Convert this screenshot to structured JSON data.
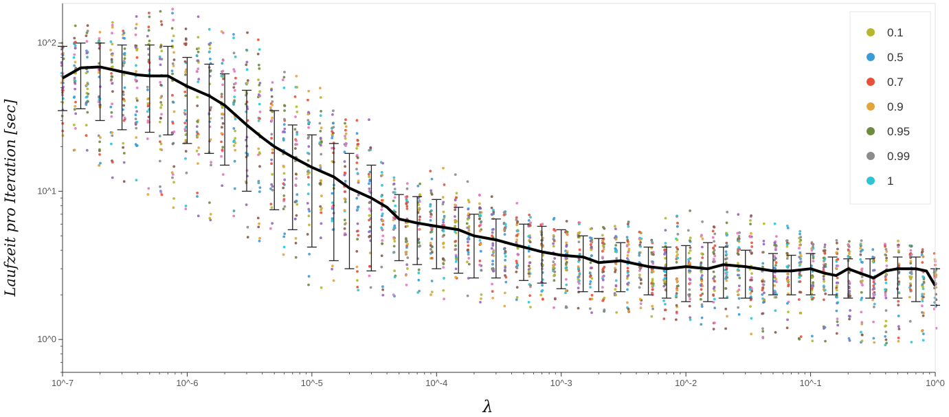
{
  "chart_data": {
    "type": "scatter",
    "title": "",
    "xlabel": "λ",
    "ylabel": "Laufzeit pro Iteration [sec]",
    "xscale": "log",
    "yscale": "log",
    "xlim": [
      1e-07,
      1
    ],
    "ylim": [
      0.6,
      185
    ],
    "grid": false,
    "legend_position": "top-right",
    "x_ticks": [
      {
        "value": 1e-07,
        "label": "10^-7"
      },
      {
        "value": 1e-06,
        "label": "10^-6"
      },
      {
        "value": 1e-05,
        "label": "10^-5"
      },
      {
        "value": 0.0001,
        "label": "10^-4"
      },
      {
        "value": 0.001,
        "label": "10^-3"
      },
      {
        "value": 0.01,
        "label": "10^-2"
      },
      {
        "value": 0.1,
        "label": "10^-1"
      },
      {
        "value": 1,
        "label": "10^0"
      }
    ],
    "y_ticks": [
      {
        "value": 1,
        "label": "10^0"
      },
      {
        "value": 10,
        "label": "10^1"
      },
      {
        "value": 100,
        "label": "10^2"
      }
    ],
    "legend": [
      {
        "label": "0.1",
        "color": "#b5b82e"
      },
      {
        "label": "0.5",
        "color": "#3b9bd6"
      },
      {
        "label": "0.7",
        "color": "#e8503a"
      },
      {
        "label": "0.9",
        "color": "#e3a53a"
      },
      {
        "label": "0.95",
        "color": "#6e8c3f"
      },
      {
        "label": "0.99",
        "color": "#8c8c8c"
      },
      {
        "label": "1",
        "color": "#2ec4d6"
      }
    ],
    "scatter_colors": [
      "#b5b82e",
      "#3b9bd6",
      "#e8503a",
      "#e3a53a",
      "#6e8c3f",
      "#8c8c8c",
      "#2ec4d6",
      "#8b5a4a",
      "#e377c2",
      "#9467bd"
    ],
    "mean_line": {
      "color": "#000000",
      "x": [
        1e-07,
        1.4e-07,
        2e-07,
        3e-07,
        4e-07,
        5e-07,
        7e-07,
        1e-06,
        1.5e-06,
        2e-06,
        3e-06,
        4e-06,
        5e-06,
        7e-06,
        1e-05,
        1.5e-05,
        2e-05,
        3e-05,
        4e-05,
        5e-05,
        7e-05,
        0.0001,
        0.00015,
        0.0002,
        0.0003,
        0.0004,
        0.0005,
        0.0007,
        0.001,
        0.0015,
        0.002,
        0.003,
        0.005,
        0.007,
        0.01,
        0.015,
        0.02,
        0.03,
        0.05,
        0.07,
        0.1,
        0.13,
        0.16,
        0.2,
        0.25,
        0.32,
        0.4,
        0.5,
        0.7,
        0.85,
        1
      ],
      "y": [
        58,
        68,
        69,
        64,
        61,
        60,
        60,
        51,
        44,
        38,
        28,
        23,
        20,
        17,
        14.5,
        12.5,
        10.5,
        9,
        7.8,
        6.5,
        6.1,
        5.8,
        5.5,
        5.0,
        4.7,
        4.4,
        4.2,
        3.9,
        3.7,
        3.6,
        3.3,
        3.4,
        3.1,
        3.0,
        3.1,
        3.0,
        3.2,
        3.1,
        2.9,
        2.9,
        3.0,
        2.8,
        2.7,
        3.0,
        2.8,
        2.6,
        2.9,
        3.0,
        3.0,
        2.9,
        2.3
      ]
    },
    "error_bars": {
      "x": [
        1e-07,
        1.4e-07,
        2e-07,
        3e-07,
        5e-07,
        7e-07,
        1e-06,
        1.5e-06,
        2e-06,
        3e-06,
        5e-06,
        7e-06,
        1e-05,
        1.5e-05,
        2e-05,
        3e-05,
        5e-05,
        7e-05,
        0.0001,
        0.00015,
        0.0002,
        0.0003,
        0.0005,
        0.0007,
        0.001,
        0.0015,
        0.002,
        0.003,
        0.005,
        0.007,
        0.01,
        0.015,
        0.02,
        0.03,
        0.05,
        0.07,
        0.1,
        0.15,
        0.2,
        0.3,
        0.5,
        0.7,
        1
      ],
      "upper": [
        95,
        100,
        100,
        97,
        97,
        95,
        80,
        72,
        62,
        48,
        35,
        28,
        24,
        21,
        18,
        15,
        9.5,
        9.2,
        8.8,
        7.8,
        7.0,
        6.5,
        6.0,
        5.8,
        5.5,
        5.0,
        4.8,
        4.5,
        4.2,
        4.2,
        4.3,
        4.5,
        4.2,
        4.0,
        3.8,
        3.7,
        3.8,
        3.6,
        3.5,
        3.5,
        3.6,
        3.6,
        3.0
      ],
      "lower": [
        35,
        36,
        30,
        26,
        25,
        24,
        21,
        18,
        15,
        10,
        7.5,
        5.5,
        4.2,
        3.4,
        3.0,
        2.9,
        3.4,
        3.2,
        3.0,
        2.8,
        2.6,
        2.6,
        2.5,
        2.4,
        2.2,
        2.1,
        2.1,
        2.1,
        2.0,
        1.9,
        1.8,
        1.8,
        1.9,
        1.9,
        2.0,
        2.0,
        2.0,
        2.0,
        1.9,
        1.9,
        1.9,
        1.8,
        1.7
      ]
    },
    "point_envelope": {
      "x": [
        1e-07,
        2e-07,
        3e-07,
        5e-07,
        1e-06,
        2e-06,
        3e-06,
        5e-06,
        1e-05,
        2e-05,
        3e-05,
        5e-05,
        0.0001,
        0.00013,
        0.0002,
        0.0003,
        0.0005,
        0.001,
        0.002,
        0.005,
        0.01,
        0.02,
        0.05,
        0.1,
        0.2,
        0.5,
        1
      ],
      "max": [
        130,
        140,
        160,
        180,
        180,
        140,
        120,
        90,
        55,
        40,
        32,
        12,
        14,
        15.5,
        12,
        10,
        8.5,
        6.5,
        6.0,
        6.5,
        7.5,
        7.5,
        6.5,
        5.0,
        4.8,
        4.5,
        4.2
      ],
      "min": [
        20,
        14,
        10,
        8,
        7,
        5.5,
        4.5,
        3.5,
        2.2,
        2.0,
        1.9,
        1.8,
        1.9,
        1.8,
        1.7,
        1.7,
        1.6,
        1.5,
        1.5,
        1.4,
        1.3,
        1.1,
        1.0,
        0.95,
        0.95,
        0.9,
        1.0
      ]
    }
  }
}
